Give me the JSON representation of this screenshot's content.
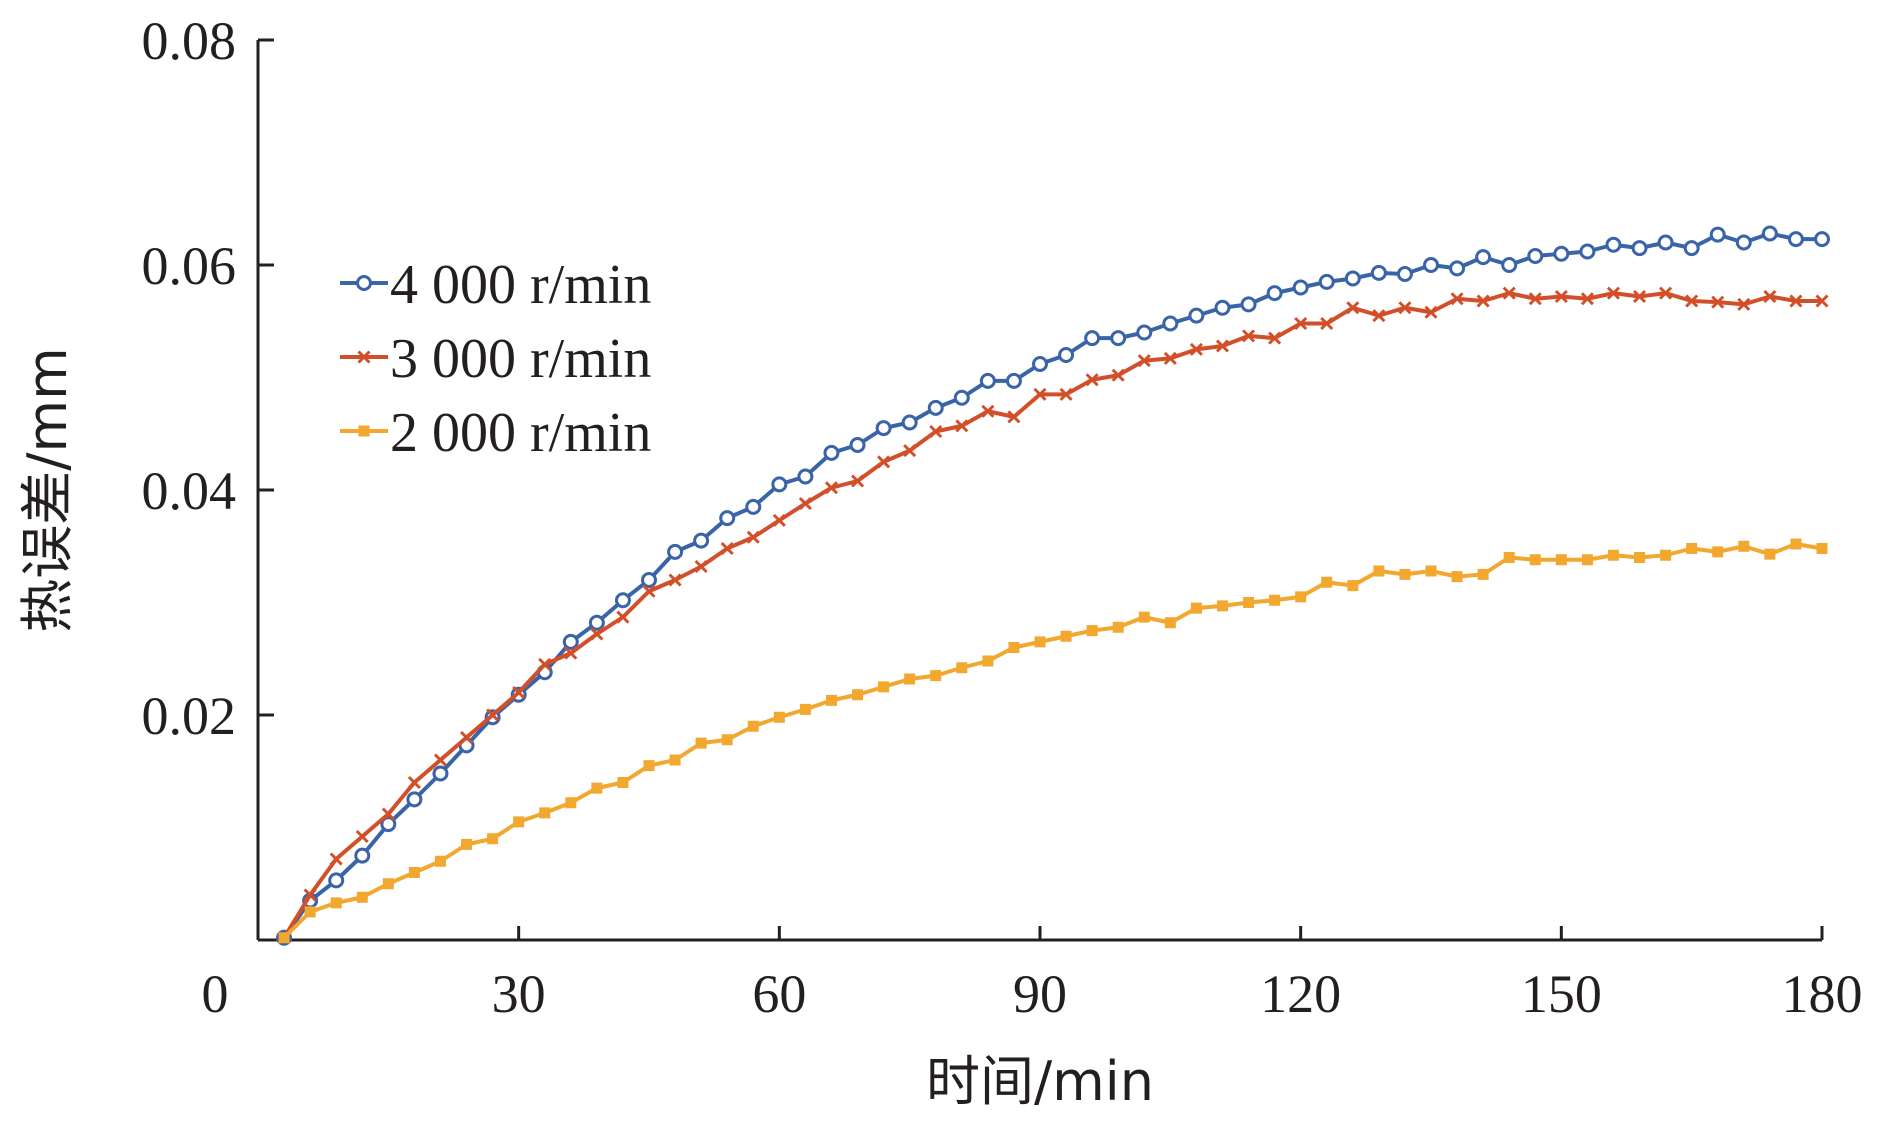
{
  "chart_data": {
    "type": "line",
    "xlabel": "时间/min",
    "ylabel": "热误差/mm",
    "xlim": [
      0,
      180
    ],
    "ylim": [
      0,
      0.08
    ],
    "x_ticks": [
      "30",
      "60",
      "90",
      "120",
      "150",
      "180"
    ],
    "y_ticks": [
      "0.02",
      "0.04",
      "0.06",
      "0.08"
    ],
    "origin_label": "0",
    "grid": false,
    "legend": "center-left",
    "x": [
      3,
      6,
      9,
      12,
      15,
      18,
      21,
      24,
      27,
      30,
      33,
      36,
      39,
      42,
      45,
      48,
      51,
      54,
      57,
      60,
      63,
      66,
      69,
      72,
      75,
      78,
      81,
      84,
      87,
      90,
      93,
      96,
      99,
      102,
      105,
      108,
      111,
      114,
      117,
      120,
      123,
      126,
      129,
      132,
      135,
      138,
      141,
      144,
      147,
      150,
      153,
      156,
      159,
      162,
      165,
      168,
      171,
      174,
      177,
      180
    ],
    "series": [
      {
        "name": "4 000 r/min",
        "color": "#3a64a8",
        "marker": "circle",
        "values": [
          0.0002,
          0.0035,
          0.0053,
          0.0075,
          0.0103,
          0.0125,
          0.0148,
          0.0173,
          0.0198,
          0.0218,
          0.0238,
          0.0265,
          0.0282,
          0.0302,
          0.032,
          0.0345,
          0.0355,
          0.0375,
          0.0385,
          0.0405,
          0.0412,
          0.0433,
          0.044,
          0.0455,
          0.046,
          0.0473,
          0.0482,
          0.0497,
          0.0497,
          0.0512,
          0.052,
          0.0535,
          0.0535,
          0.054,
          0.0548,
          0.0555,
          0.0562,
          0.0565,
          0.0575,
          0.058,
          0.0585,
          0.0588,
          0.0593,
          0.0592,
          0.06,
          0.0597,
          0.0607,
          0.06,
          0.0608,
          0.061,
          0.0612,
          0.0618,
          0.0615,
          0.062,
          0.0615,
          0.0627,
          0.062,
          0.0628,
          0.0623,
          0.0623
        ]
      },
      {
        "name": "3 000 r/min",
        "color": "#d24f29",
        "marker": "x",
        "values": [
          0.0002,
          0.004,
          0.0072,
          0.0092,
          0.0112,
          0.014,
          0.016,
          0.018,
          0.02,
          0.022,
          0.0245,
          0.0255,
          0.0272,
          0.0287,
          0.031,
          0.032,
          0.0332,
          0.0348,
          0.0358,
          0.0373,
          0.0388,
          0.0402,
          0.0408,
          0.0425,
          0.0435,
          0.0452,
          0.0457,
          0.047,
          0.0465,
          0.0485,
          0.0485,
          0.0498,
          0.0502,
          0.0515,
          0.0517,
          0.0525,
          0.0528,
          0.0537,
          0.0535,
          0.0548,
          0.0548,
          0.0562,
          0.0555,
          0.0562,
          0.0558,
          0.057,
          0.0568,
          0.0575,
          0.057,
          0.0572,
          0.057,
          0.0575,
          0.0572,
          0.0575,
          0.0568,
          0.0567,
          0.0565,
          0.0572,
          0.0568,
          0.0568
        ]
      },
      {
        "name": "2 000 r/min",
        "color": "#f2a72e",
        "marker": "square",
        "values": [
          0.0002,
          0.0025,
          0.0033,
          0.0038,
          0.005,
          0.006,
          0.007,
          0.0085,
          0.009,
          0.0105,
          0.0113,
          0.0122,
          0.0135,
          0.014,
          0.0155,
          0.016,
          0.0175,
          0.0178,
          0.019,
          0.0198,
          0.0205,
          0.0213,
          0.0218,
          0.0225,
          0.0232,
          0.0235,
          0.0242,
          0.0248,
          0.026,
          0.0265,
          0.027,
          0.0275,
          0.0278,
          0.0287,
          0.0282,
          0.0295,
          0.0297,
          0.03,
          0.0302,
          0.0305,
          0.0318,
          0.0315,
          0.0328,
          0.0325,
          0.0328,
          0.0323,
          0.0325,
          0.034,
          0.0338,
          0.0338,
          0.0338,
          0.0342,
          0.034,
          0.0342,
          0.0348,
          0.0345,
          0.035,
          0.0343,
          0.0352,
          0.0348
        ]
      }
    ]
  }
}
